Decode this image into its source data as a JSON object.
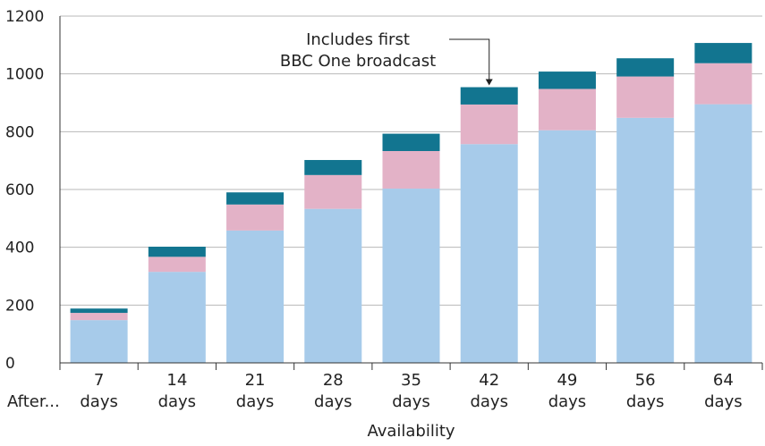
{
  "chart_data": {
    "type": "bar",
    "stacked": true,
    "categories": [
      [
        "7",
        "days"
      ],
      [
        "14",
        "days"
      ],
      [
        "21",
        "days"
      ],
      [
        "28",
        "days"
      ],
      [
        "35",
        "days"
      ],
      [
        "42",
        "days"
      ],
      [
        "49",
        "days"
      ],
      [
        "56",
        "days"
      ],
      [
        "64",
        "days"
      ]
    ],
    "category_prefix": "After...",
    "series": [
      {
        "color": "#a7cbea",
        "values": [
          148,
          315,
          458,
          533,
          603,
          757,
          805,
          848,
          895
        ]
      },
      {
        "color": "#e3b2c7",
        "values": [
          25,
          52,
          90,
          117,
          130,
          137,
          143,
          143,
          142
        ]
      },
      {
        "color": "#127590",
        "values": [
          15,
          35,
          42,
          52,
          60,
          60,
          60,
          63,
          70
        ]
      }
    ],
    "xlabel": "Availability",
    "ylabel": "",
    "ylim": [
      0,
      1200
    ],
    "yticks": [
      0,
      200,
      400,
      600,
      800,
      1000,
      1200
    ],
    "grid": "horizontal",
    "legend": "none",
    "annotation": {
      "lines": [
        "Includes first",
        "BBC One broadcast"
      ],
      "category_index": 5
    }
  }
}
